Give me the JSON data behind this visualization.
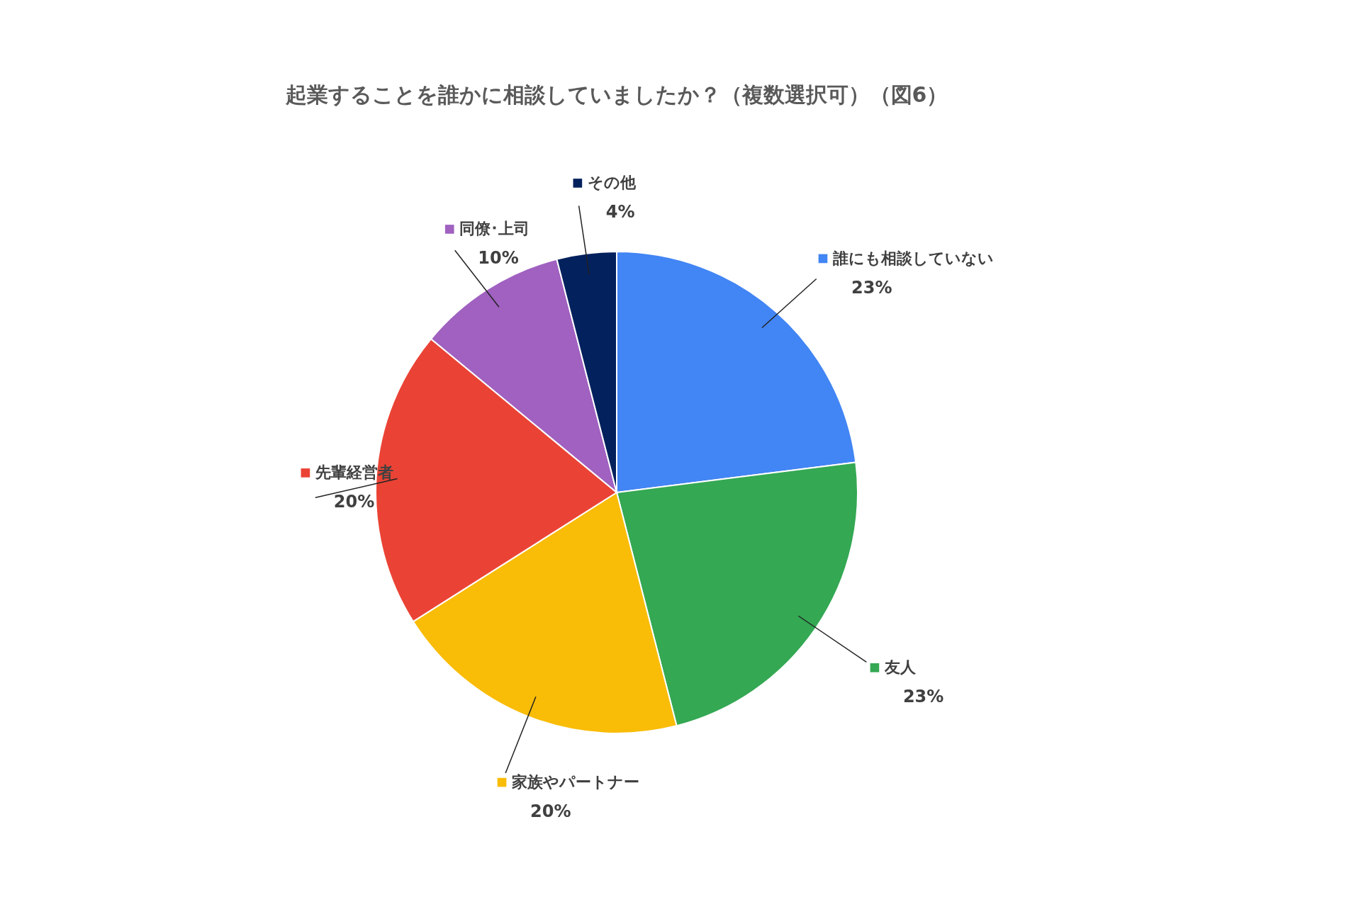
{
  "chart_data": {
    "type": "pie",
    "title": "起業することを誰かに相談していましたか？（複数選択可）（図6）",
    "categories": [
      "誰にも相談していない",
      "友人",
      "家族やパートナー",
      "先輩経営者",
      "同僚･上司",
      "その他"
    ],
    "values": [
      23,
      23,
      20,
      20,
      10,
      4
    ],
    "value_labels": [
      "23%",
      "23%",
      "20%",
      "20%",
      "10%",
      "4%"
    ],
    "colors": [
      "#4285f4",
      "#34a853",
      "#f9bc07",
      "#ea4335",
      "#a061c0",
      "#03215d"
    ],
    "legend": "right"
  }
}
